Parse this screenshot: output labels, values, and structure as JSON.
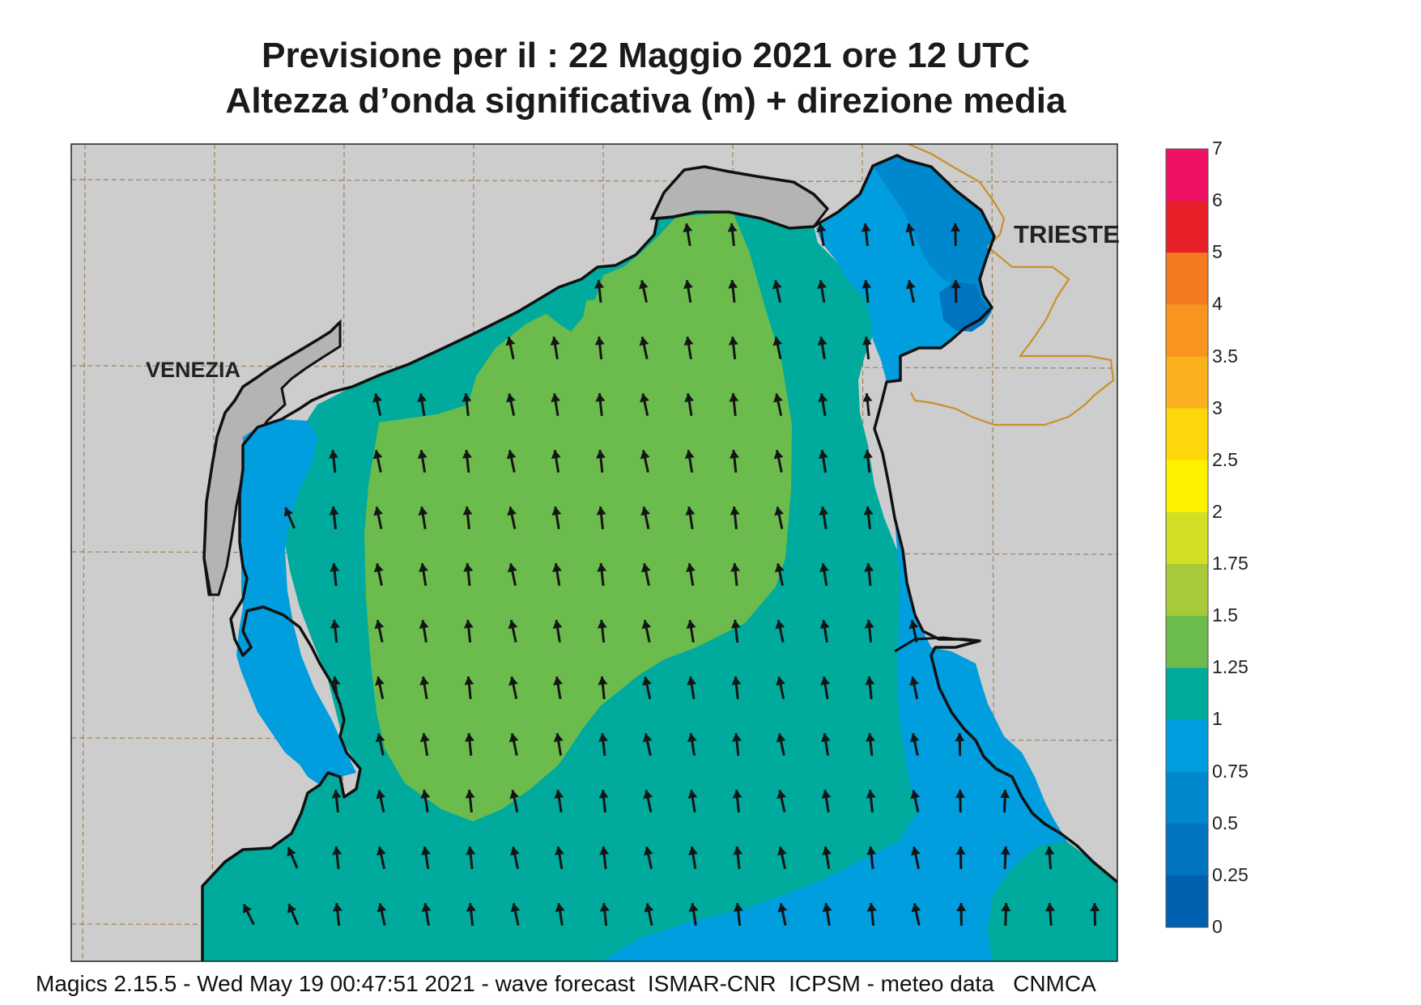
{
  "title": {
    "line1": "Previsione per il  :  22   Maggio  2021   ore 12 UTC",
    "line2": "Altezza d’onda significativa (m) + direzione media"
  },
  "places": {
    "venezia": "VENEZIA",
    "trieste": "TRIESTE"
  },
  "legend": {
    "labels": [
      "7",
      "6",
      "5",
      "4",
      "3.5",
      "3",
      "2.5",
      "2",
      "1.75",
      "1.5",
      "1.25",
      "1",
      "0.75",
      "0.5",
      "0.25",
      "0"
    ],
    "colors": [
      "#ee1166",
      "#e8202a",
      "#f47a22",
      "#f7951e",
      "#fbb11d",
      "#fdd70a",
      "#fff200",
      "#d3df24",
      "#a7ca3b",
      "#6cbc4d",
      "#00aa9d",
      "#009ddf",
      "#0088cf",
      "#0074bf",
      "#0060b0"
    ]
  },
  "colors": {
    "land": "#cdcdcd",
    "coast_gray": "#b4b4b4",
    "graticule": "#a08058",
    "border": "#c8902a",
    "arrow": "#151515",
    "band_1_125": "#00aa9d",
    "band_125_15": "#6cbc4d",
    "band_075_1": "#009ddf",
    "band_05_075": "#0088cf",
    "band_025_05": "#0074bf"
  },
  "arrows": {
    "direction": "north"
  },
  "footer": "Magics 2.15.5 - Wed May 19 00:47:51 2021 - wave forecast  ISMAR-CNR  ICPSM - meteo data   CNMCA"
}
